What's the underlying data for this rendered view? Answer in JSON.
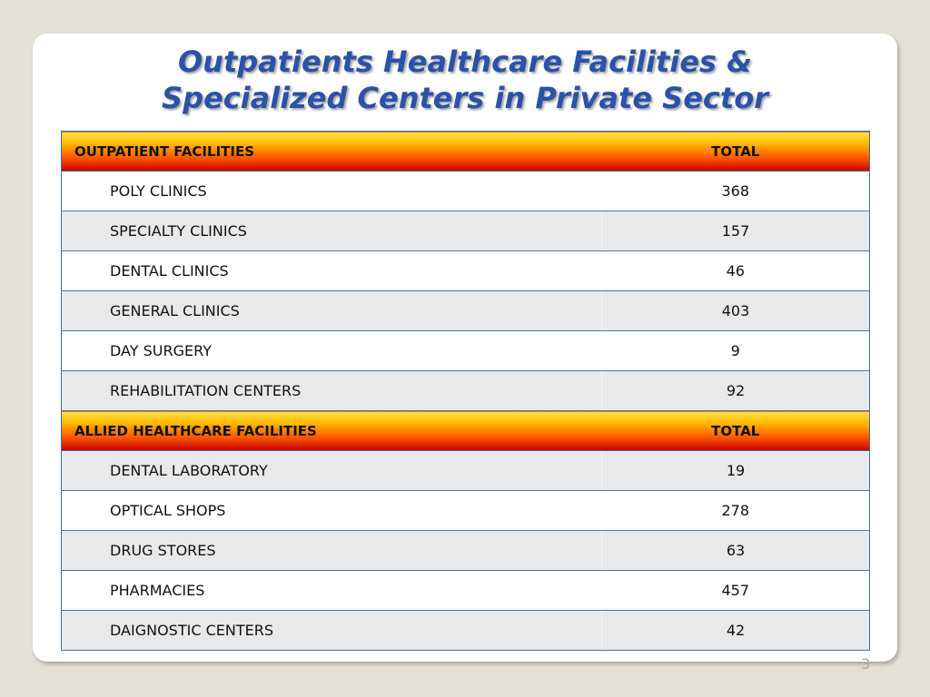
{
  "slide": {
    "title_line1": "Outpatients Healthcare Facilities &",
    "title_line2": "Specialized Centers in Private Sector",
    "page_number": "3",
    "colors": {
      "title": "#2a52a8",
      "slide_bg": "#ffffff",
      "page_bg": "#e4e0d4",
      "row_alt": "#e7e9eb"
    }
  },
  "table": {
    "sections": [
      {
        "header": "OUTPATIENT  FACILITIES",
        "total_label": "TOTAL",
        "rows": [
          {
            "name": "POLY CLINICS",
            "total": "368"
          },
          {
            "name": "SPECIALTY CLINICS",
            "total": "157"
          },
          {
            "name": "DENTAL CLINICS",
            "total": "46"
          },
          {
            "name": "GENERAL CLINICS",
            "total": "403"
          },
          {
            "name": "DAY SURGERY",
            "total": "9"
          },
          {
            "name": "REHABILITATION CENTERS",
            "total": "92"
          }
        ]
      },
      {
        "header": "ALLIED HEALTHCARE FACILITIES",
        "total_label": "TOTAL",
        "rows": [
          {
            "name": "DENTAL LABORATORY",
            "total": "19"
          },
          {
            "name": "OPTICAL SHOPS",
            "total": "278"
          },
          {
            "name": "DRUG STORES",
            "total": "63"
          },
          {
            "name": "PHARMACIES",
            "total": "457"
          },
          {
            "name": "DAIGNOSTIC CENTERS",
            "total": "42"
          }
        ]
      }
    ]
  }
}
